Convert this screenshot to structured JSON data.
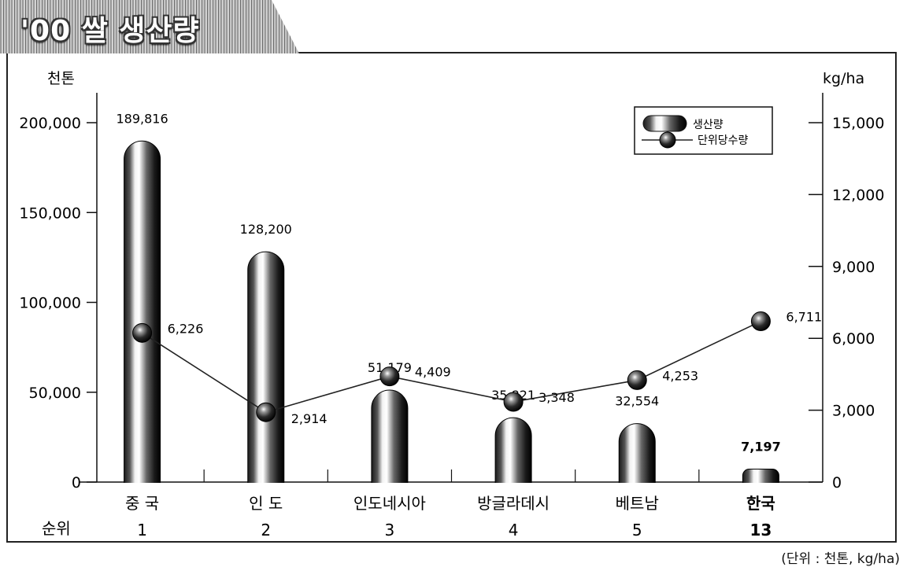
{
  "title": "'00 쌀 생산량",
  "unit_note": "(단위 : 천톤, kg/ha)",
  "row_label": "순위",
  "chart_data": {
    "type": "bar",
    "title": "'00 쌀 생산량",
    "categories": [
      "중 국",
      "인 도",
      "인도네시아",
      "방글라데시",
      "베트남",
      "한국"
    ],
    "ranks": [
      "1",
      "2",
      "3",
      "4",
      "5",
      "13"
    ],
    "highlight_category": "한국",
    "y_left": {
      "unit_label": "천톤",
      "ylim": [
        0,
        200000
      ],
      "ticks": [
        "0",
        "50,000",
        "100,000",
        "150,000",
        "200,000"
      ]
    },
    "y_right": {
      "unit_label": "kg/ha",
      "ylim": [
        0,
        15000
      ],
      "ticks": [
        "0",
        "3,000",
        "6,000",
        "9,000",
        "12,000",
        "15,000"
      ]
    },
    "series": [
      {
        "name": "생산량",
        "kind": "bar",
        "axis": "left",
        "values": [
          189816,
          128200,
          51179,
          35821,
          32554,
          7197
        ],
        "labels": [
          "189,816",
          "128,200",
          "51,179",
          "35,821",
          "32,554",
          "7,197"
        ]
      },
      {
        "name": "단위당수량",
        "kind": "line",
        "axis": "right",
        "values": [
          6226,
          2914,
          4409,
          3348,
          4253,
          6711
        ],
        "labels": [
          "6,226",
          "2,914",
          "4,409",
          "3,348",
          "4,253",
          "6,711"
        ]
      }
    ],
    "legend": "top-right",
    "grid": false
  }
}
